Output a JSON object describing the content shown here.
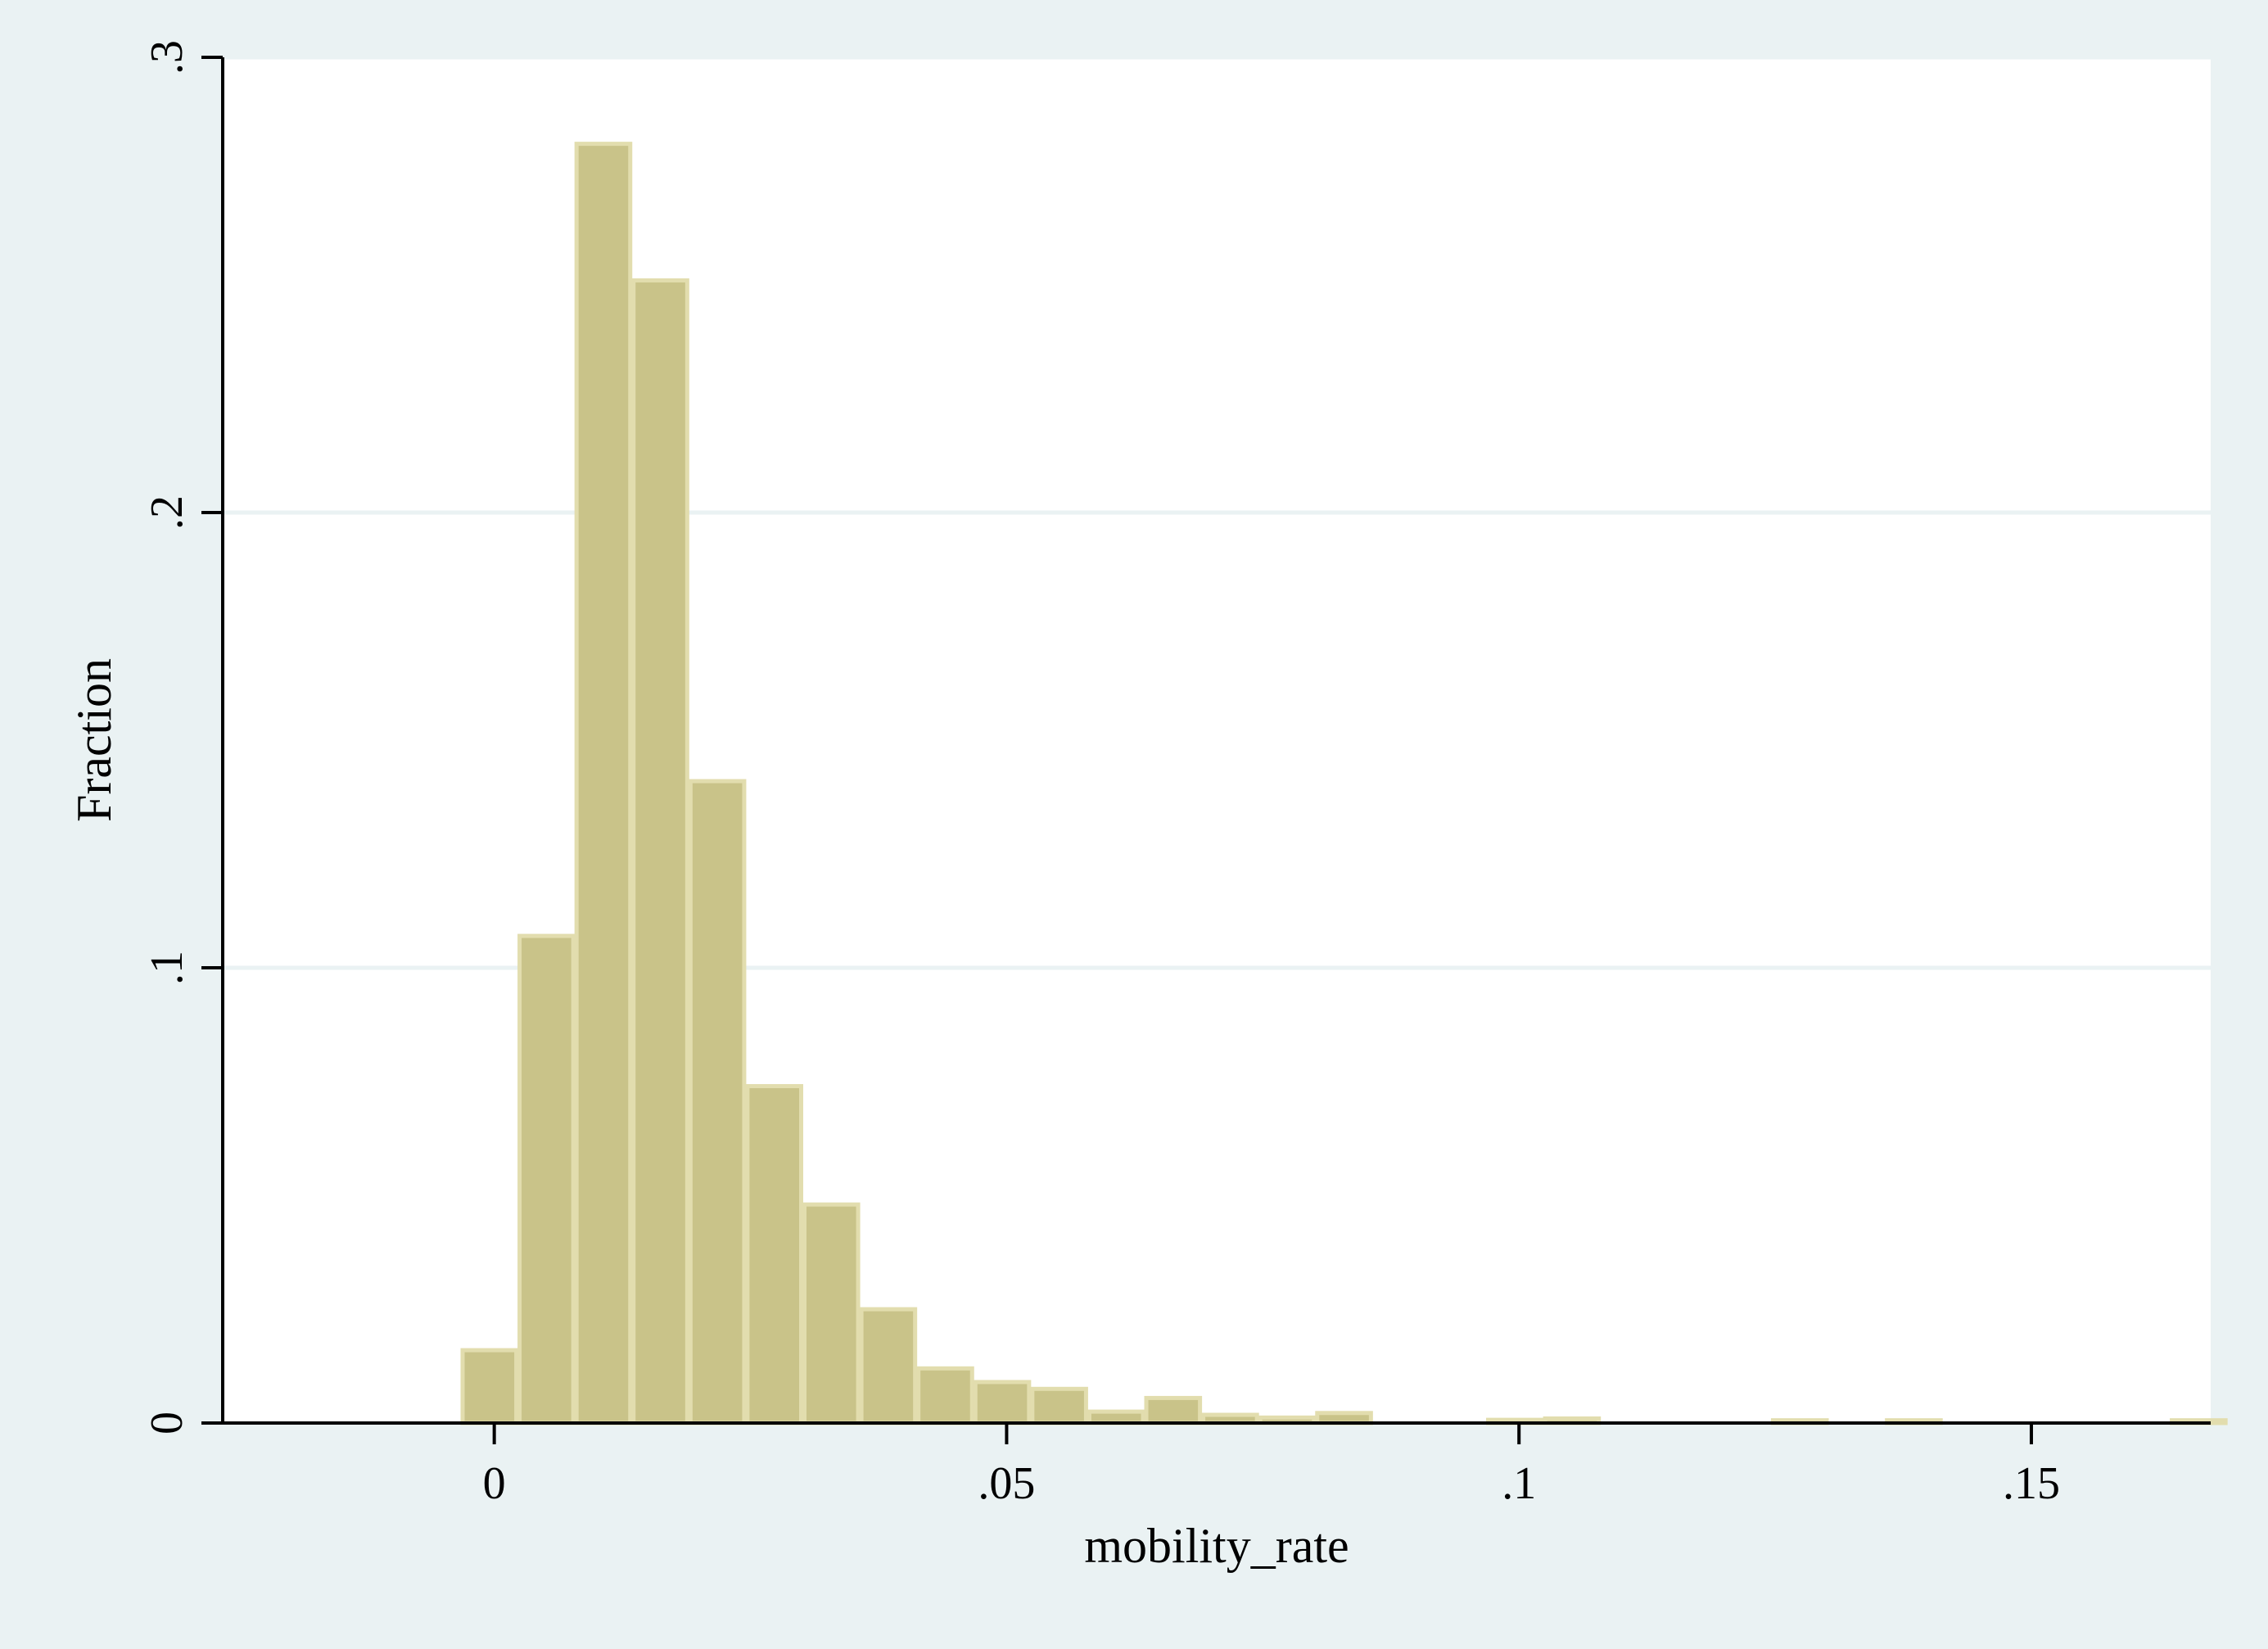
{
  "colors": {
    "background": "#eaf2f3",
    "plot_background": "#ffffff",
    "bar_fill": "#c9c389",
    "bar_outline": "#e2ddae",
    "gridline": "#eaf2f3",
    "axis": "#000000"
  },
  "chart_data": {
    "type": "bar",
    "subtype": "histogram",
    "title": "",
    "xlabel": "mobility_rate",
    "ylabel": "Fraction",
    "xlim": [
      -0.0265,
      0.1675
    ],
    "ylim": [
      0,
      0.3
    ],
    "grid": "horizontal",
    "x_ticks": [
      {
        "value": 0,
        "label": "0"
      },
      {
        "value": 0.05,
        "label": ".05"
      },
      {
        "value": 0.1,
        "label": ".1"
      },
      {
        "value": 0.15,
        "label": ".15"
      }
    ],
    "y_ticks": [
      {
        "value": 0,
        "label": "0"
      },
      {
        "value": 0.1,
        "label": ".1"
      },
      {
        "value": 0.2,
        "label": ".2"
      },
      {
        "value": 0.3,
        "label": ".3"
      }
    ],
    "bin_width": 0.00556,
    "bin_edges_start": -0.00325,
    "values": [
      0.016,
      0.107,
      0.281,
      0.251,
      0.141,
      0.074,
      0.048,
      0.025,
      0.012,
      0.009,
      0.0075,
      0.0025,
      0.0055,
      0.0018,
      0.0012,
      0.0022,
      0,
      0,
      0.0007,
      0.001,
      0,
      0,
      0,
      0.0006,
      0,
      0.0006,
      0,
      0,
      0,
      0,
      0.0006
    ]
  }
}
